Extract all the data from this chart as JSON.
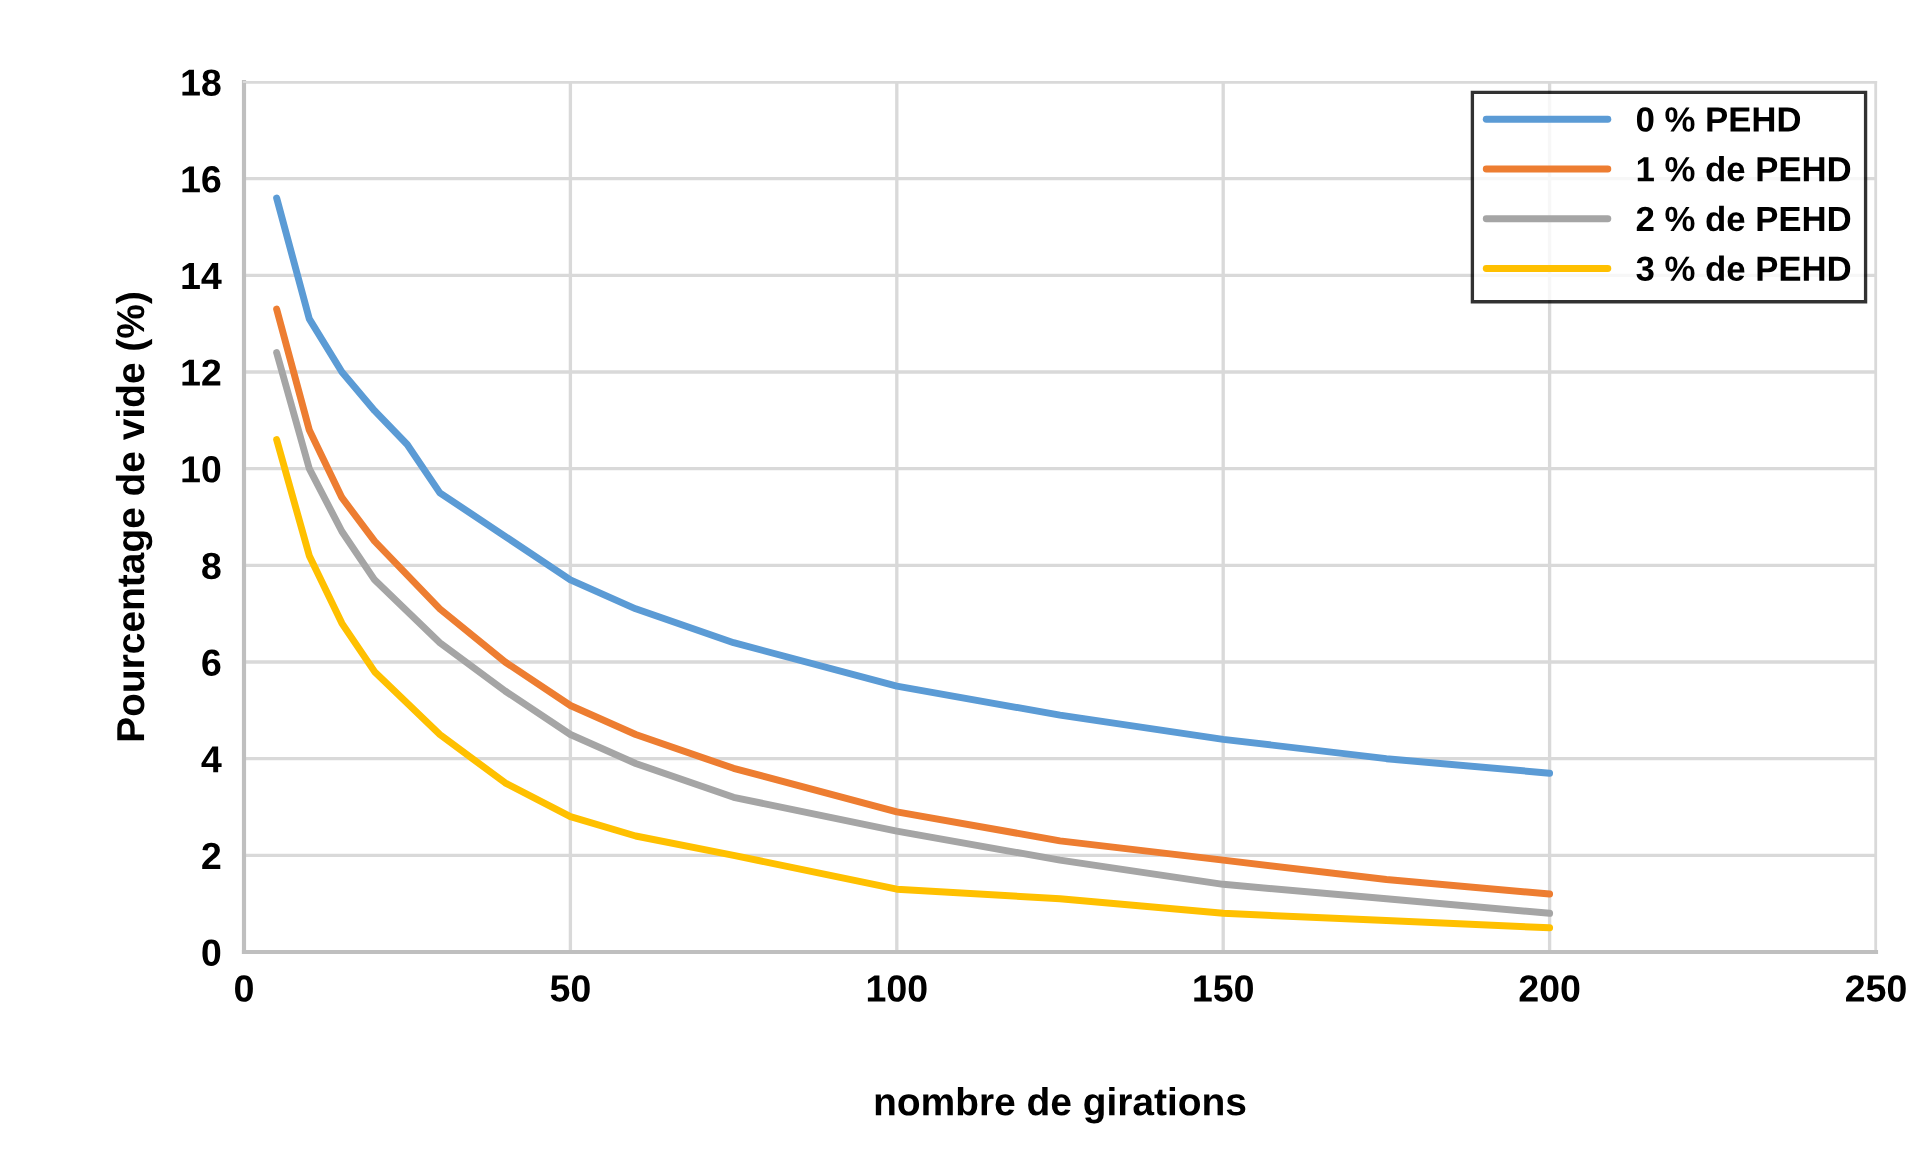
{
  "chart_data": {
    "type": "line",
    "xlabel": "nombre de girations",
    "ylabel": "Pourcentage de vide (%)",
    "xlim": [
      0,
      250
    ],
    "xticks": [
      0,
      50,
      100,
      150,
      200,
      250
    ],
    "ylim": [
      0,
      18
    ],
    "yticks": [
      0,
      2,
      4,
      6,
      8,
      10,
      12,
      14,
      16,
      18
    ],
    "grid": true,
    "legend": "top right",
    "marker": "none",
    "line_style": "solid",
    "series": [
      {
        "name": "0 % PEHD",
        "color": "#5b9bd5",
        "x": [
          5,
          10,
          15,
          20,
          25,
          30,
          40,
          50,
          60,
          75,
          100,
          125,
          150,
          175,
          200
        ],
        "values": [
          15.6,
          13.1,
          12.0,
          11.2,
          10.5,
          9.5,
          8.6,
          7.7,
          7.1,
          6.4,
          5.5,
          4.9,
          4.4,
          4.0,
          3.7
        ]
      },
      {
        "name": "1 % de PEHD",
        "color": "#ed7d31",
        "x": [
          5,
          10,
          15,
          20,
          30,
          40,
          50,
          60,
          75,
          100,
          125,
          150,
          175,
          200
        ],
        "values": [
          13.3,
          10.8,
          9.4,
          8.5,
          7.1,
          6.0,
          5.1,
          4.5,
          3.8,
          2.9,
          2.3,
          1.9,
          1.5,
          1.2
        ]
      },
      {
        "name": "2 % de PEHD",
        "color": "#a5a5a5",
        "x": [
          5,
          10,
          15,
          20,
          30,
          40,
          50,
          60,
          75,
          100,
          125,
          150,
          175,
          200
        ],
        "values": [
          12.4,
          10.0,
          8.7,
          7.7,
          6.4,
          5.4,
          4.5,
          3.9,
          3.2,
          2.5,
          1.9,
          1.4,
          1.1,
          0.8
        ]
      },
      {
        "name": "3 % de PEHD",
        "color": "#ffc000",
        "x": [
          5,
          10,
          15,
          20,
          30,
          40,
          50,
          60,
          75,
          100,
          125,
          150,
          175,
          200
        ],
        "values": [
          10.6,
          8.2,
          6.8,
          5.8,
          4.5,
          3.5,
          2.8,
          2.4,
          2.0,
          1.3,
          1.1,
          0.8,
          0.65,
          0.5
        ]
      }
    ]
  }
}
